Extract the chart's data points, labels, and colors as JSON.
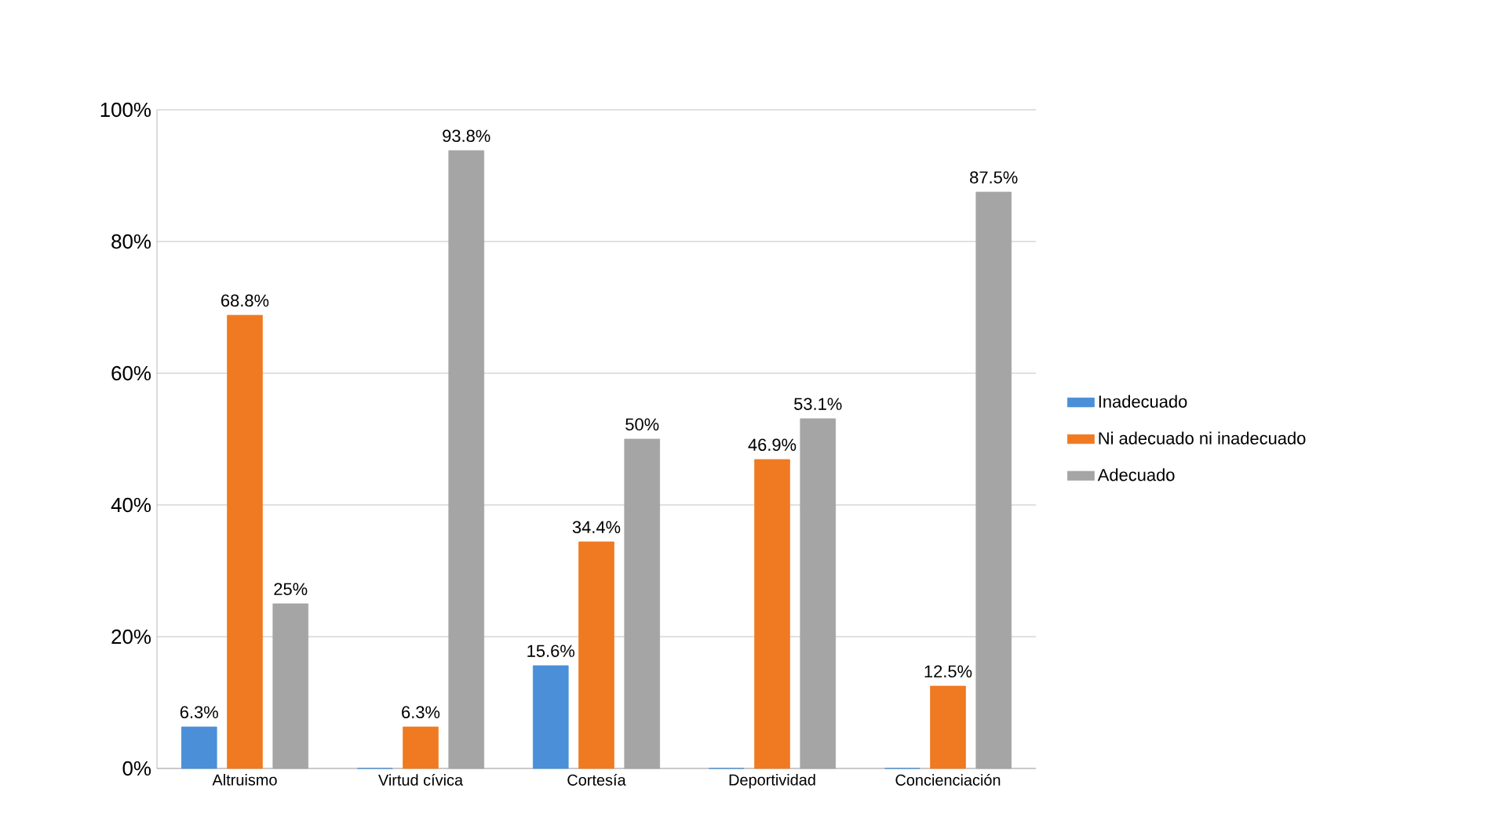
{
  "chart_data": {
    "type": "bar",
    "categories": [
      "Altruismo",
      "Virtud cívica",
      "Cortesía",
      "Deportividad",
      "Concienciación"
    ],
    "series": [
      {
        "name": "Inadecuado",
        "color": "#4a8fd8",
        "values": [
          6.3,
          0,
          15.6,
          0,
          0
        ],
        "value_labels": [
          "6.3%",
          null,
          "15.6%",
          null,
          null
        ]
      },
      {
        "name": "Ni adecuado ni inadecuado",
        "color": "#f07a22",
        "values": [
          68.8,
          6.3,
          34.4,
          46.9,
          12.5
        ],
        "value_labels": [
          "68.8%",
          "6.3%",
          "34.4%",
          "46.9%",
          "12.5%"
        ]
      },
      {
        "name": "Adecuado",
        "color": "#a5a5a5",
        "values": [
          25,
          93.8,
          50,
          53.1,
          87.5
        ],
        "value_labels": [
          "25%",
          "93.8%",
          "50%",
          "53.1%",
          "87.5%"
        ]
      }
    ],
    "ylim": [
      0,
      100
    ],
    "yticks": [
      {
        "value": 0,
        "label": "0%"
      },
      {
        "value": 20,
        "label": "20%"
      },
      {
        "value": 40,
        "label": "40%"
      },
      {
        "value": 60,
        "label": "60%"
      },
      {
        "value": 80,
        "label": "80%"
      },
      {
        "value": 100,
        "label": "100%"
      }
    ],
    "grid": "y",
    "legend": "right"
  }
}
